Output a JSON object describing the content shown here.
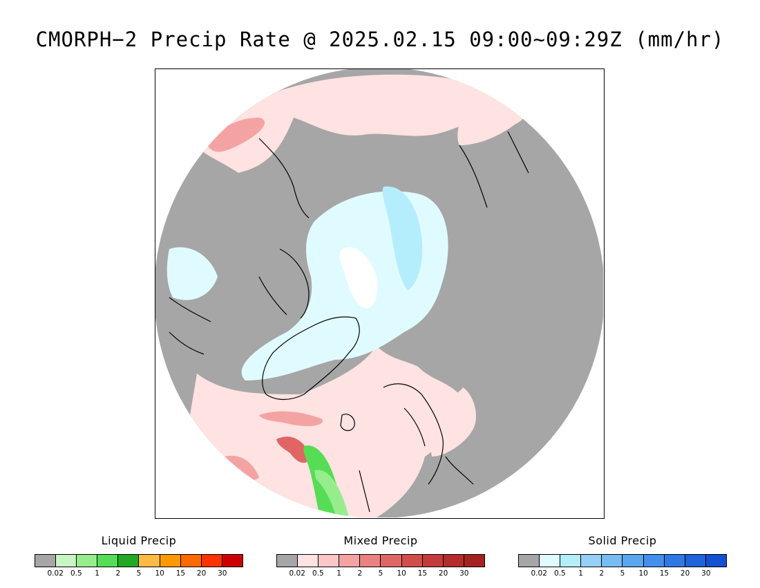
{
  "title": "CMORPH−2 Precip Rate @ 2025.02.15 09:00~09:29Z (mm/hr)",
  "legends": [
    {
      "title": "Liquid Precip",
      "colors": [
        "#a6a6a6",
        "#c8f5c3",
        "#97ec8e",
        "#55dd55",
        "#22aa22",
        "#ffbb44",
        "#ff9900",
        "#ff6a00",
        "#ff3300",
        "#cc0000"
      ],
      "ticks": [
        "0.02",
        "0.5",
        "1",
        "2",
        "5",
        "10",
        "15",
        "20",
        "30"
      ]
    },
    {
      "title": "Mixed Precip",
      "colors": [
        "#a6a6a6",
        "#ffe2e2",
        "#ffc6c6",
        "#f4a3a3",
        "#ea8282",
        "#e06666",
        "#d44d4d",
        "#c43a3a",
        "#b52a2a",
        "#a52222"
      ],
      "ticks": [
        "0.02",
        "0.5",
        "1",
        "2",
        "5",
        "10",
        "15",
        "20",
        "30"
      ]
    },
    {
      "title": "Solid Precip",
      "colors": [
        "#a6a6a6",
        "#e0fbff",
        "#b4eefc",
        "#96d0f8",
        "#78bcf4",
        "#5aa6f0",
        "#4290ec",
        "#2f78e4",
        "#1e62dc",
        "#1450d2"
      ],
      "ticks": [
        "0.02",
        "0.5",
        "1",
        "2",
        "5",
        "10",
        "15",
        "20",
        "30"
      ]
    }
  ],
  "map_colors": {
    "background": "#a6a6a6",
    "mixed_light": "#ffe2e2",
    "mixed_mid": "#f4a3a3",
    "mixed_dark": "#e06666",
    "solid_light": "#e0fbff",
    "solid_mid": "#b4eefc",
    "solid_white": "#ffffff",
    "liquid_light": "#97ec8e",
    "liquid_mid": "#55dd55",
    "coastline": "#000000"
  }
}
